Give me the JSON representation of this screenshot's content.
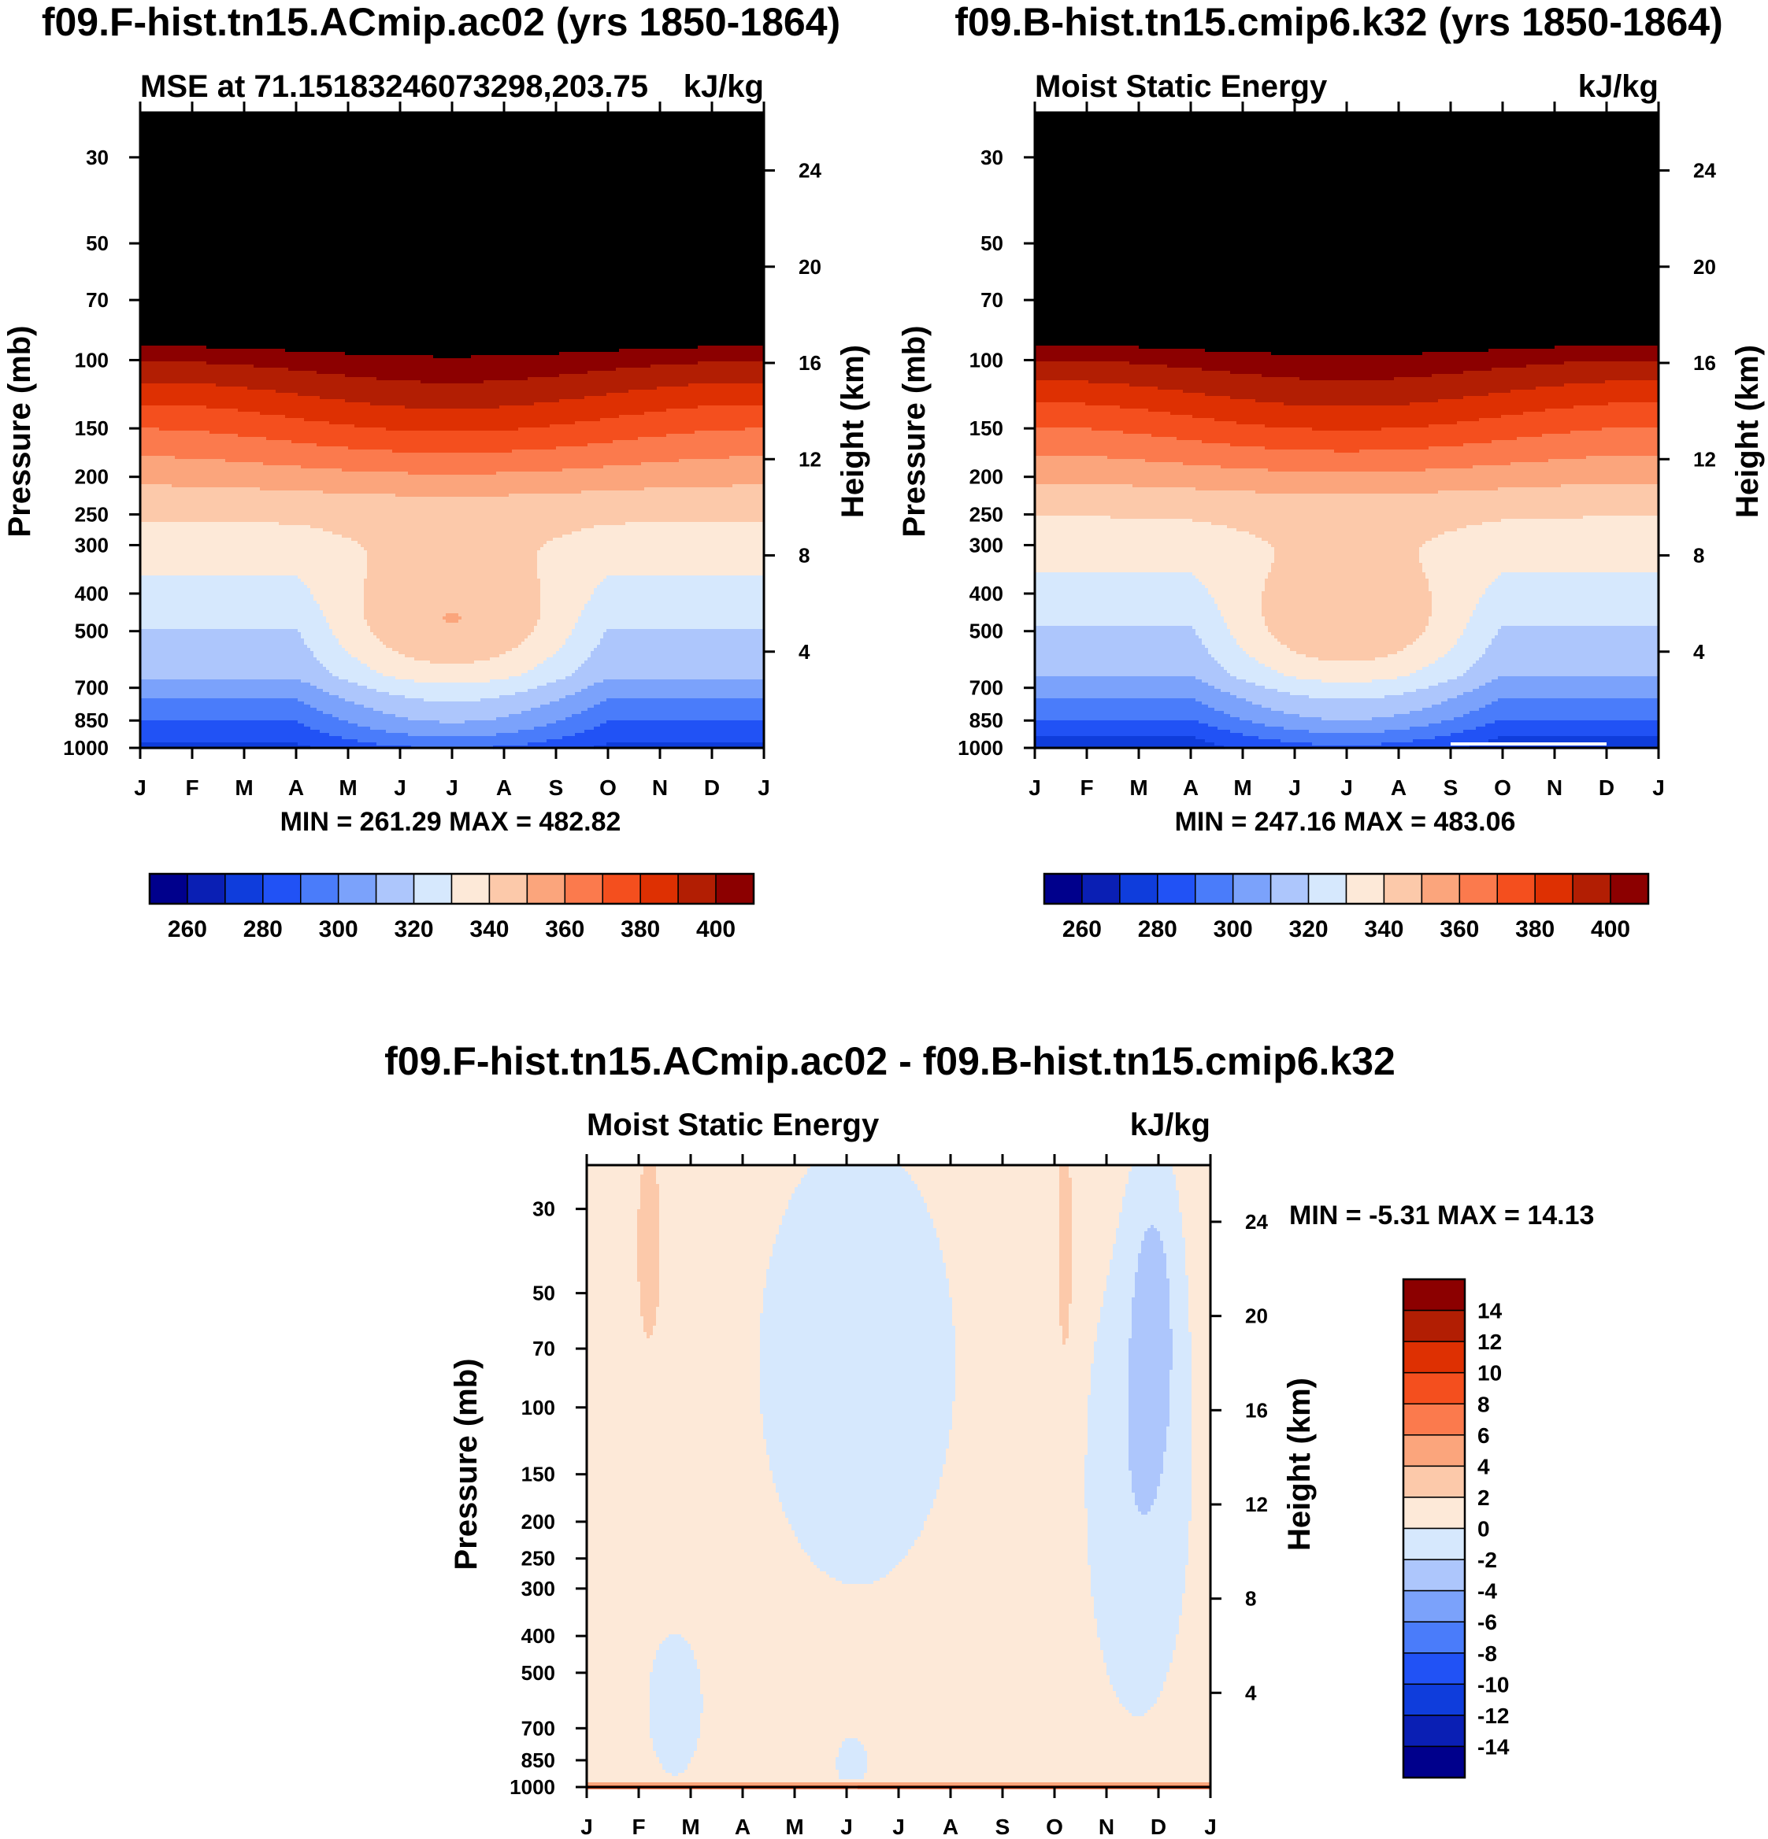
{
  "chart_data": [
    {
      "type": "heatmap",
      "id": "panel1",
      "title": "f09.F-hist.tn15.ACmip.ac02 (yrs 1850-1864)",
      "subtitle_left": "MSE at 71.15183246073298,203.75",
      "subtitle_right": "kJ/kg",
      "ylabel": "Pressure (mb)",
      "ylabel_right": "Height (km)",
      "x_ticks": [
        "J",
        "F",
        "M",
        "A",
        "M",
        "J",
        "J",
        "A",
        "S",
        "O",
        "N",
        "D",
        "J"
      ],
      "y_ticks": [
        "30",
        "50",
        "70",
        "100",
        "150",
        "200",
        "250",
        "300",
        "400",
        "500",
        "700",
        "850",
        "1000"
      ],
      "y_ticks_right": [
        "24",
        "20",
        "16",
        "12",
        "8",
        "4"
      ],
      "stats": "MIN = 261.29 MAX = 482.82",
      "colorbar_ticks": [
        "260",
        "280",
        "300",
        "320",
        "340",
        "360",
        "380",
        "400"
      ],
      "levels": [
        250,
        260,
        270,
        280,
        290,
        300,
        310,
        320,
        330,
        340,
        350,
        360,
        370,
        380,
        390,
        400
      ]
    },
    {
      "type": "heatmap",
      "id": "panel2",
      "title": "f09.B-hist.tn15.cmip6.k32 (yrs 1850-1864)",
      "subtitle_left": "Moist Static Energy",
      "subtitle_right": "kJ/kg",
      "ylabel": "Pressure (mb)",
      "ylabel_right": "Height (km)",
      "x_ticks": [
        "J",
        "F",
        "M",
        "A",
        "M",
        "J",
        "J",
        "A",
        "S",
        "O",
        "N",
        "D",
        "J"
      ],
      "y_ticks": [
        "30",
        "50",
        "70",
        "100",
        "150",
        "200",
        "250",
        "300",
        "400",
        "500",
        "700",
        "850",
        "1000"
      ],
      "y_ticks_right": [
        "24",
        "20",
        "16",
        "12",
        "8",
        "4"
      ],
      "stats": "MIN = 247.16 MAX = 483.06",
      "colorbar_ticks": [
        "260",
        "280",
        "300",
        "320",
        "340",
        "360",
        "380",
        "400"
      ],
      "levels": [
        250,
        260,
        270,
        280,
        290,
        300,
        310,
        320,
        330,
        340,
        350,
        360,
        370,
        380,
        390,
        400
      ]
    },
    {
      "type": "heatmap",
      "id": "panel3",
      "title": "f09.F-hist.tn15.ACmip.ac02 - f09.B-hist.tn15.cmip6.k32",
      "subtitle_left": "Moist Static Energy",
      "subtitle_right": "kJ/kg",
      "ylabel": "Pressure (mb)",
      "ylabel_right": "Height (km)",
      "x_ticks": [
        "J",
        "F",
        "M",
        "A",
        "M",
        "J",
        "J",
        "A",
        "S",
        "O",
        "N",
        "D",
        "J"
      ],
      "y_ticks": [
        "30",
        "50",
        "70",
        "100",
        "150",
        "200",
        "250",
        "300",
        "400",
        "500",
        "700",
        "850",
        "1000"
      ],
      "y_ticks_right": [
        "24",
        "20",
        "16",
        "12",
        "8",
        "4"
      ],
      "stats": "MIN =  -5.31 MAX =  14.13",
      "colorbar_ticks": [
        "14",
        "12",
        "10",
        "8",
        "6",
        "4",
        "2",
        "0",
        "-2",
        "-4",
        "-6",
        "-8",
        "-10",
        "-12",
        "-14"
      ],
      "levels": [
        -14,
        -12,
        -10,
        -8,
        -6,
        -4,
        -2,
        0,
        2,
        4,
        6,
        8,
        10,
        12,
        14
      ]
    }
  ],
  "colors": {
    "palette": [
      "#00008c",
      "#0a1fb4",
      "#0f3ddc",
      "#2152f5",
      "#4a7cfa",
      "#7ba2fb",
      "#adc6fc",
      "#d6e8fd",
      "#fde9d8",
      "#fcc9aa",
      "#fba57c",
      "#fb7a4d",
      "#f44f1e",
      "#de3002",
      "#b21e03",
      "#8c0000"
    ]
  }
}
